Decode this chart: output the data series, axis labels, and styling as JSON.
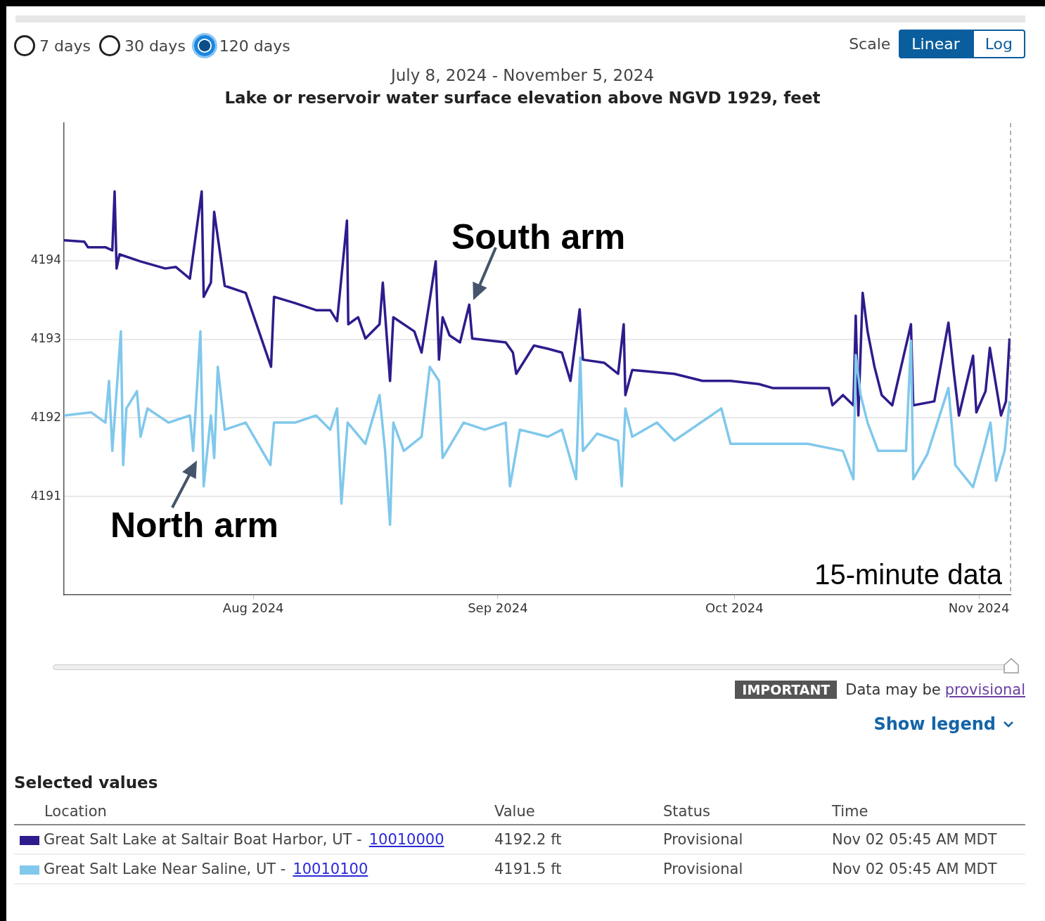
{
  "chart_data": {
    "type": "line",
    "subtitle": "July 8, 2024 - November 5, 2024",
    "title": "Lake or reservoir water surface elevation above NGVD 1929, feet",
    "xlim": [
      "2024-07-08",
      "2024-11-05"
    ],
    "xticks": [
      {
        "value": "2024-08-01",
        "label": "Aug 2024"
      },
      {
        "value": "2024-09-01",
        "label": "Sep 2024"
      },
      {
        "value": "2024-10-01",
        "label": "Oct 2024"
      },
      {
        "value": "2024-11-01",
        "label": "Nov 2024"
      }
    ],
    "ylim": [
      4189.75,
      4195.75
    ],
    "yticks": [
      4191,
      4192,
      4193,
      4194
    ],
    "grid": "y",
    "legend": "bottom",
    "series": [
      {
        "name": "Great Salt Lake at Saltair Boat Harbor, UT - 10010000",
        "color": "#2f1b8c",
        "x": [
          "2024-07-08T00:00",
          "2024-07-10T14:00",
          "2024-07-11T01:00",
          "2024-07-13T06:00",
          "2024-07-14T03:00",
          "2024-07-14T10:00",
          "2024-07-14T16:00",
          "2024-07-15T01:00",
          "2024-07-17T17:00",
          "2024-07-20T20:00",
          "2024-07-22T04:00",
          "2024-07-23T23:00",
          "2024-07-25T11:00",
          "2024-07-25T17:00",
          "2024-07-26T15:00",
          "2024-07-27T01:00",
          "2024-07-28T09:00",
          "2024-07-31T01:00",
          "2024-08-03T06:00",
          "2024-08-03T15:00",
          "2024-08-06T07:00",
          "2024-08-08T23:00",
          "2024-08-10T18:00",
          "2024-08-11T15:00",
          "2024-08-12T21:00",
          "2024-08-13T01:00",
          "2024-08-14T07:00",
          "2024-08-15T05:00",
          "2024-08-17T00:00",
          "2024-08-17T10:00",
          "2024-08-18T08:00",
          "2024-08-18T18:00",
          "2024-08-21T10:00",
          "2024-08-22T08:00",
          "2024-08-24T03:00",
          "2024-08-24T13:00",
          "2024-08-25T00:00",
          "2024-08-25T21:00",
          "2024-08-27T05:00",
          "2024-08-28T09:00",
          "2024-08-28T18:00",
          "2024-09-02T00:00",
          "2024-09-02T22:00",
          "2024-09-03T08:00",
          "2024-09-05T14:00",
          "2024-09-07T08:00",
          "2024-09-09T03:00",
          "2024-09-10T05:00",
          "2024-09-11T09:00",
          "2024-09-11T19:00",
          "2024-09-14T12:00",
          "2024-09-16T06:00",
          "2024-09-16T23:00",
          "2024-09-17T04:00",
          "2024-09-18T01:00",
          "2024-09-23T09:00",
          "2024-09-26T23:00",
          "2024-09-30T12:00",
          "2024-10-04T02:00",
          "2024-10-05T20:00",
          "2024-10-12T23:00",
          "2024-10-13T10:00",
          "2024-10-14T18:00",
          "2024-10-16T02:00",
          "2024-10-16T09:00",
          "2024-10-16T17:00",
          "2024-10-17T06:00",
          "2024-10-17T21:00",
          "2024-10-18T18:00",
          "2024-10-19T16:00",
          "2024-10-21T00:00",
          "2024-10-23T09:00",
          "2024-10-23T16:00",
          "2024-10-26T08:00",
          "2024-10-28T03:00",
          "2024-10-28T20:00",
          "2024-10-29T11:00",
          "2024-10-31T06:00",
          "2024-10-31T16:00",
          "2024-11-01T20:00",
          "2024-11-02T09:00",
          "2024-11-03T19:00",
          "2024-11-04T10:00",
          "2024-11-04T21:00"
        ],
        "values": [
          4194.26,
          4194.24,
          4194.17,
          4194.17,
          4194.13,
          4194.88,
          4193.9,
          4194.08,
          4193.99,
          4193.9,
          4193.92,
          4193.77,
          4194.88,
          4193.54,
          4193.72,
          4194.62,
          4193.68,
          4193.59,
          4192.65,
          4193.54,
          4193.46,
          4193.37,
          4193.37,
          4193.23,
          4194.51,
          4193.19,
          4193.28,
          4193.01,
          4193.19,
          4193.72,
          4192.47,
          4193.28,
          4193.1,
          4192.83,
          4193.99,
          4192.74,
          4193.28,
          4193.05,
          4192.96,
          4193.44,
          4193.01,
          4192.96,
          4192.83,
          4192.56,
          4192.92,
          4192.88,
          4192.83,
          4192.47,
          4193.38,
          4192.74,
          4192.7,
          4192.56,
          4193.19,
          4192.29,
          4192.61,
          4192.56,
          4192.47,
          4192.47,
          4192.43,
          4192.38,
          4192.38,
          4192.16,
          4192.29,
          4192.16,
          4193.3,
          4192.03,
          4193.59,
          4193.1,
          4192.65,
          4192.29,
          4192.16,
          4193.19,
          4192.16,
          4192.21,
          4193.21,
          4192.56,
          4192.03,
          4192.79,
          4192.07,
          4192.34,
          4192.89,
          4192.03,
          4192.21,
          4193.01
        ]
      },
      {
        "name": "Great Salt Lake Near Saline, UT - 10010100",
        "color": "#80c8ec",
        "x": [
          "2024-07-08T00:00",
          "2024-07-11T11:00",
          "2024-07-13T06:00",
          "2024-07-13T17:00",
          "2024-07-14T03:00",
          "2024-07-15T05:00",
          "2024-07-15T12:00",
          "2024-07-15T22:00",
          "2024-07-17T06:00",
          "2024-07-17T17:00",
          "2024-07-18T14:00",
          "2024-07-21T06:00",
          "2024-07-23T23:00",
          "2024-07-24T09:00",
          "2024-07-25T07:00",
          "2024-07-25T17:00",
          "2024-07-26T15:00",
          "2024-07-27T01:00",
          "2024-07-27T12:00",
          "2024-07-28T09:00",
          "2024-07-31T01:00",
          "2024-08-03T04:00",
          "2024-08-03T15:00",
          "2024-08-06T07:00",
          "2024-08-08T23:00",
          "2024-08-10T18:00",
          "2024-08-11T15:00",
          "2024-08-12T04:00",
          "2024-08-12T23:00",
          "2024-08-15T05:00",
          "2024-08-17T00:00",
          "2024-08-17T17:00",
          "2024-08-18T08:00",
          "2024-08-18T18:00",
          "2024-08-20T02:00",
          "2024-08-22T08:00",
          "2024-08-23T09:00",
          "2024-08-24T13:00",
          "2024-08-25T00:00",
          "2024-08-27T16:00",
          "2024-08-30T08:00",
          "2024-09-02T00:00",
          "2024-09-02T13:00",
          "2024-09-03T19:00",
          "2024-09-07T08:00",
          "2024-09-09T03:00",
          "2024-09-10T22:00",
          "2024-09-11T11:00",
          "2024-09-11T19:00",
          "2024-09-13T14:00",
          "2024-09-16T06:00",
          "2024-09-16T17:00",
          "2024-09-17T04:00",
          "2024-09-18T01:00",
          "2024-09-21T04:00",
          "2024-09-23T09:00",
          "2024-09-29T08:00",
          "2024-09-30T12:00",
          "2024-10-05T20:00",
          "2024-10-10T07:00",
          "2024-10-14T18:00",
          "2024-10-16T02:00",
          "2024-10-16T09:00",
          "2024-10-17T00:00",
          "2024-10-17T21:00",
          "2024-10-19T05:00",
          "2024-10-22T18:00",
          "2024-10-23T09:00",
          "2024-10-23T16:00",
          "2024-10-25T11:00",
          "2024-10-28T03:00",
          "2024-10-29T00:00",
          "2024-10-31T06:00",
          "2024-11-01T13:00",
          "2024-11-02T11:00",
          "2024-11-03T04:00",
          "2024-11-04T06:00",
          "2024-11-04T21:00"
        ],
        "values": [
          4192.03,
          4192.07,
          4191.94,
          4192.47,
          4191.58,
          4193.1,
          4191.4,
          4192.12,
          4192.34,
          4191.76,
          4192.12,
          4191.94,
          4192.03,
          4191.58,
          4193.1,
          4191.13,
          4192.03,
          4191.49,
          4192.65,
          4191.85,
          4191.94,
          4191.4,
          4191.94,
          4191.94,
          4192.03,
          4191.85,
          4192.12,
          4190.91,
          4191.94,
          4191.67,
          4192.29,
          4191.58,
          4190.64,
          4191.94,
          4191.58,
          4191.76,
          4192.65,
          4192.47,
          4191.49,
          4191.94,
          4191.85,
          4191.94,
          4191.13,
          4191.85,
          4191.76,
          4191.85,
          4191.22,
          4192.77,
          4191.58,
          4191.8,
          4191.71,
          4191.13,
          4192.12,
          4191.76,
          4191.94,
          4191.71,
          4192.12,
          4191.67,
          4191.67,
          4191.67,
          4191.58,
          4191.22,
          4192.8,
          4192.29,
          4191.94,
          4191.58,
          4191.58,
          4192.98,
          4191.22,
          4191.54,
          4192.38,
          4191.4,
          4191.12,
          4191.58,
          4191.94,
          4191.2,
          4191.58,
          4192.21
        ]
      }
    ],
    "annotations": [
      "7 days",
      "30 days",
      "120 days",
      "Scale",
      "Linear",
      "Log",
      "South arm",
      "North arm",
      "15-minute data",
      "IMPORTANT",
      "Data may be",
      "provisional",
      "Show legend",
      "Selected values",
      "Location",
      "Value",
      "Status",
      "Time",
      "4192.2 ft",
      "Provisional",
      "Nov 02 05:45 AM MDT",
      "4191.5 ft",
      "Provisional",
      "Nov 02 05:45 AM MDT"
    ]
  }
}
